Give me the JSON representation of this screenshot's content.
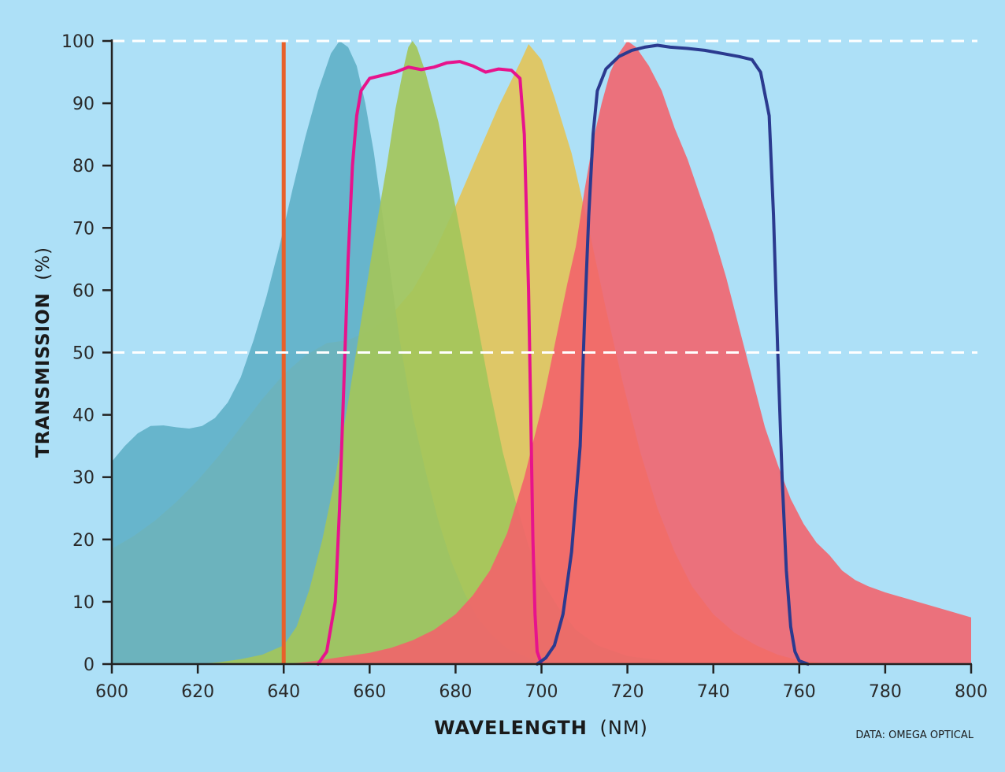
{
  "chart_data": {
    "type": "area",
    "xlabel_bold": "WAVELENGTH",
    "xlabel_unit": "(NM)",
    "ylabel_bold": "TRANSMISSION",
    "ylabel_unit": "(%)",
    "credit": "DATA: OMEGA OPTICAL",
    "xlim": [
      600,
      800
    ],
    "ylim": [
      0,
      100
    ],
    "x_ticks": [
      600,
      620,
      640,
      660,
      680,
      700,
      720,
      740,
      760,
      780,
      800
    ],
    "y_ticks": [
      0,
      10,
      20,
      30,
      40,
      50,
      60,
      70,
      80,
      90,
      100
    ],
    "reference_lines_y": [
      50,
      100
    ],
    "vertical_line": {
      "x": 640,
      "color": "#e8602a"
    },
    "colors": {
      "background": "#ade0f7",
      "axis": "#222222",
      "reference_line": "#ffffff"
    },
    "series": [
      {
        "kind": "area",
        "color": "#e3c457",
        "opacity": 0.9,
        "points": [
          [
            600,
            18.5
          ],
          [
            605,
            20.5
          ],
          [
            610,
            23
          ],
          [
            615,
            26
          ],
          [
            620,
            29.5
          ],
          [
            625,
            33.5
          ],
          [
            630,
            38
          ],
          [
            635,
            42.5
          ],
          [
            640,
            46.5
          ],
          [
            645,
            49.5
          ],
          [
            650,
            51.5
          ],
          [
            655,
            52
          ],
          [
            660,
            53.5
          ],
          [
            665,
            56
          ],
          [
            670,
            60
          ],
          [
            675,
            66
          ],
          [
            680,
            73.5
          ],
          [
            685,
            81.5
          ],
          [
            690,
            89.5
          ],
          [
            695,
            96.5
          ],
          [
            697,
            99.5
          ],
          [
            700,
            97
          ],
          [
            703,
            91
          ],
          [
            707,
            82
          ],
          [
            711,
            70
          ],
          [
            715,
            57
          ],
          [
            719,
            45
          ],
          [
            723,
            34
          ],
          [
            727,
            25
          ],
          [
            731,
            18
          ],
          [
            735,
            12.5
          ],
          [
            740,
            8
          ],
          [
            745,
            5
          ],
          [
            750,
            3
          ],
          [
            755,
            1.5
          ],
          [
            760,
            0.6
          ],
          [
            765,
            0.2
          ],
          [
            770,
            0
          ]
        ]
      },
      {
        "kind": "area",
        "color": "#5fb0c6",
        "opacity": 0.9,
        "points": [
          [
            600,
            32.5
          ],
          [
            603,
            35
          ],
          [
            606,
            37
          ],
          [
            609,
            38.2
          ],
          [
            612,
            38.3
          ],
          [
            615,
            38
          ],
          [
            618,
            37.8
          ],
          [
            621,
            38.2
          ],
          [
            624,
            39.5
          ],
          [
            627,
            42
          ],
          [
            630,
            46
          ],
          [
            633,
            52
          ],
          [
            636,
            59
          ],
          [
            639,
            67
          ],
          [
            642,
            76
          ],
          [
            645,
            84.5
          ],
          [
            648,
            92
          ],
          [
            651,
            98
          ],
          [
            653,
            100
          ],
          [
            655,
            99
          ],
          [
            657,
            96
          ],
          [
            659,
            90
          ],
          [
            661,
            82
          ],
          [
            663,
            72
          ],
          [
            665,
            62
          ],
          [
            667,
            52
          ],
          [
            670,
            40
          ],
          [
            673,
            31
          ],
          [
            676,
            23
          ],
          [
            679,
            16.5
          ],
          [
            682,
            11.5
          ],
          [
            685,
            7.5
          ],
          [
            688,
            5
          ],
          [
            692,
            2.5
          ],
          [
            697,
            1
          ],
          [
            705,
            0.3
          ],
          [
            720,
            0
          ]
        ]
      },
      {
        "kind": "area",
        "color": "#a3c55b",
        "opacity": 0.92,
        "points": [
          [
            600,
            0
          ],
          [
            620,
            0
          ],
          [
            625,
            0.3
          ],
          [
            630,
            0.8
          ],
          [
            635,
            1.5
          ],
          [
            640,
            3
          ],
          [
            643,
            6
          ],
          [
            646,
            12
          ],
          [
            649,
            20
          ],
          [
            652,
            30
          ],
          [
            655,
            42
          ],
          [
            658,
            55
          ],
          [
            661,
            68
          ],
          [
            664,
            80
          ],
          [
            666,
            89
          ],
          [
            668,
            96
          ],
          [
            669,
            99
          ],
          [
            670,
            100
          ],
          [
            671,
            99
          ],
          [
            673,
            95
          ],
          [
            676,
            87
          ],
          [
            679,
            77
          ],
          [
            682,
            66
          ],
          [
            685,
            55
          ],
          [
            688,
            44
          ],
          [
            691,
            34
          ],
          [
            694,
            26
          ],
          [
            697,
            19
          ],
          [
            700,
            13.5
          ],
          [
            704,
            9
          ],
          [
            708,
            5.5
          ],
          [
            713,
            3
          ],
          [
            720,
            1.3
          ],
          [
            730,
            0.4
          ],
          [
            740,
            0
          ]
        ]
      },
      {
        "kind": "area",
        "color": "#f4616b",
        "opacity": 0.88,
        "points": [
          [
            640,
            0
          ],
          [
            645,
            0.3
          ],
          [
            650,
            0.8
          ],
          [
            655,
            1.3
          ],
          [
            660,
            1.8
          ],
          [
            665,
            2.6
          ],
          [
            670,
            3.8
          ],
          [
            675,
            5.5
          ],
          [
            680,
            8
          ],
          [
            684,
            11
          ],
          [
            688,
            15
          ],
          [
            692,
            21
          ],
          [
            696,
            30
          ],
          [
            700,
            41
          ],
          [
            703,
            51
          ],
          [
            706,
            61
          ],
          [
            708,
            67
          ],
          [
            710,
            76
          ],
          [
            712,
            84
          ],
          [
            714,
            90
          ],
          [
            716,
            95
          ],
          [
            718,
            98
          ],
          [
            720,
            100
          ],
          [
            722,
            99
          ],
          [
            725,
            96
          ],
          [
            728,
            92
          ],
          [
            731,
            86
          ],
          [
            734,
            81
          ],
          [
            737,
            75
          ],
          [
            740,
            69
          ],
          [
            743,
            62
          ],
          [
            746,
            54
          ],
          [
            749,
            46
          ],
          [
            752,
            38
          ],
          [
            755,
            32
          ],
          [
            758,
            26.5
          ],
          [
            761,
            22.5
          ],
          [
            764,
            19.5
          ],
          [
            767,
            17.5
          ],
          [
            770,
            15
          ],
          [
            773,
            13.5
          ],
          [
            776,
            12.5
          ],
          [
            780,
            11.5
          ],
          [
            785,
            10.5
          ],
          [
            790,
            9.5
          ],
          [
            795,
            8.5
          ],
          [
            800,
            7.5
          ]
        ]
      },
      {
        "kind": "line",
        "color": "#e7138c",
        "width": 4,
        "points": [
          [
            648,
            0
          ],
          [
            650,
            2
          ],
          [
            652,
            10
          ],
          [
            653,
            25
          ],
          [
            654,
            45
          ],
          [
            655,
            65
          ],
          [
            656,
            80
          ],
          [
            657,
            88
          ],
          [
            658,
            92
          ],
          [
            660,
            94
          ],
          [
            663,
            94.5
          ],
          [
            666,
            95
          ],
          [
            669,
            95.8
          ],
          [
            672,
            95.4
          ],
          [
            675,
            95.8
          ],
          [
            678,
            96.5
          ],
          [
            681,
            96.7
          ],
          [
            684,
            96
          ],
          [
            687,
            95
          ],
          [
            690,
            95.5
          ],
          [
            693,
            95.3
          ],
          [
            695,
            94
          ],
          [
            696,
            85
          ],
          [
            697,
            60
          ],
          [
            697.5,
            40
          ],
          [
            698,
            20
          ],
          [
            698.5,
            8
          ],
          [
            699,
            2
          ],
          [
            700,
            0
          ]
        ]
      },
      {
        "kind": "line",
        "color": "#2b3a8f",
        "width": 4,
        "points": [
          [
            699,
            0
          ],
          [
            701,
            1
          ],
          [
            703,
            3
          ],
          [
            705,
            8
          ],
          [
            707,
            18
          ],
          [
            709,
            35
          ],
          [
            710,
            55
          ],
          [
            711,
            72
          ],
          [
            712,
            85
          ],
          [
            713,
            92
          ],
          [
            715,
            95.5
          ],
          [
            718,
            97.5
          ],
          [
            721,
            98.5
          ],
          [
            724,
            99
          ],
          [
            727,
            99.3
          ],
          [
            730,
            99
          ],
          [
            734,
            98.8
          ],
          [
            738,
            98.5
          ],
          [
            742,
            98
          ],
          [
            746,
            97.5
          ],
          [
            749,
            97
          ],
          [
            751,
            95
          ],
          [
            753,
            88
          ],
          [
            754,
            72
          ],
          [
            755,
            50
          ],
          [
            756,
            30
          ],
          [
            757,
            15
          ],
          [
            758,
            6
          ],
          [
            759,
            2
          ],
          [
            760,
            0.5
          ],
          [
            762,
            0
          ]
        ]
      }
    ]
  }
}
